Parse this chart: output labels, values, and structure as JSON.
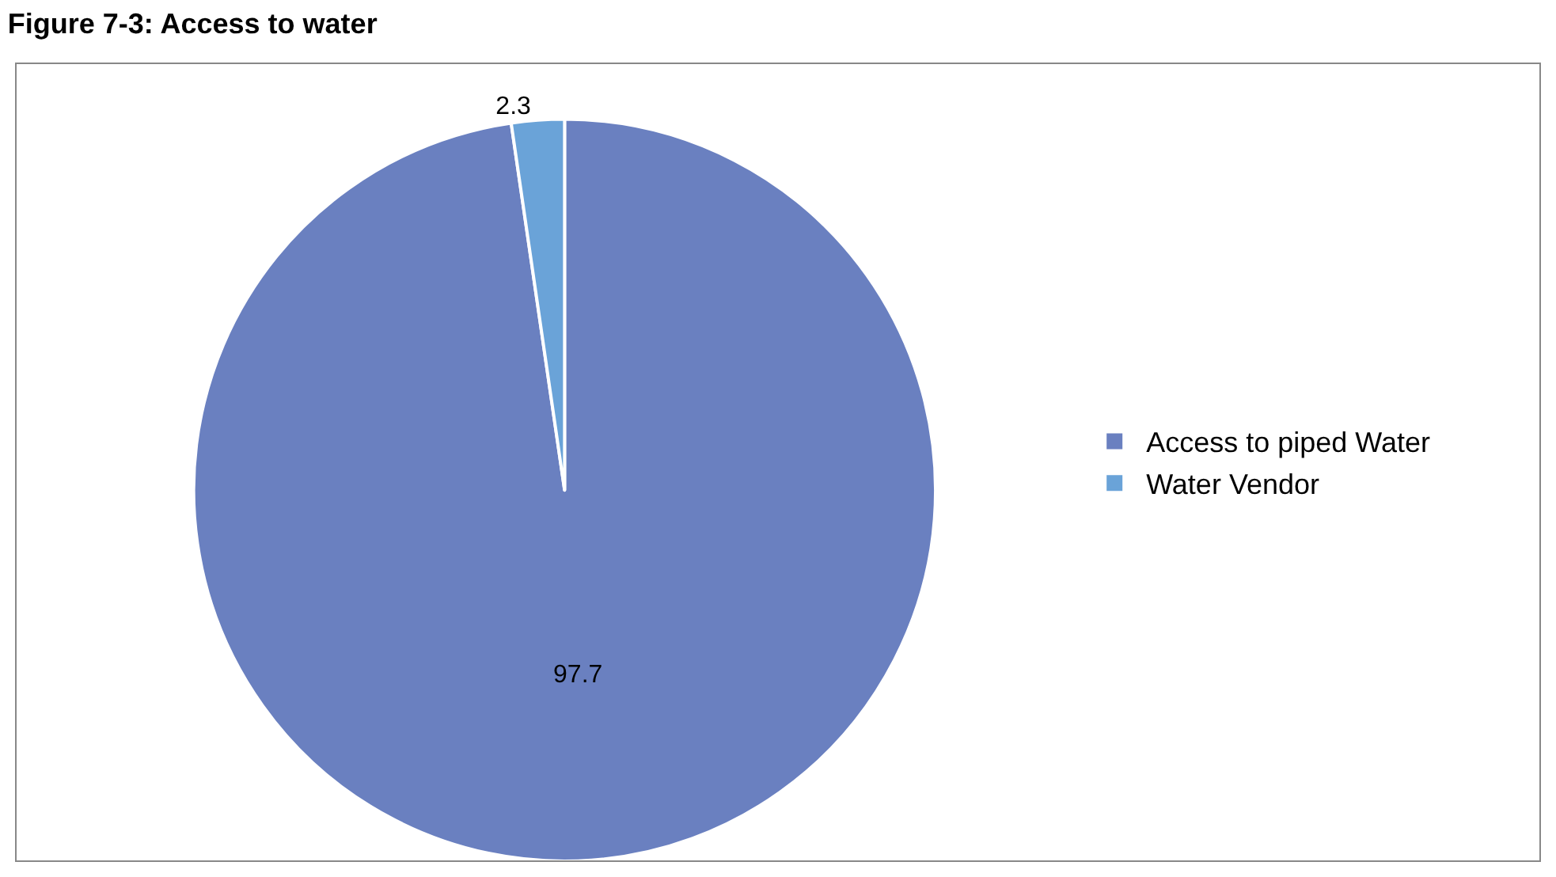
{
  "chart_data": {
    "type": "pie",
    "title": "Figure 7-3: Access to water",
    "categories": [
      "Access to piped Water",
      "Water Vendor"
    ],
    "values": [
      97.7,
      2.3
    ],
    "colors": [
      "#6a80c0",
      "#6aa3d8"
    ],
    "data_labels": true,
    "legend": "right"
  }
}
